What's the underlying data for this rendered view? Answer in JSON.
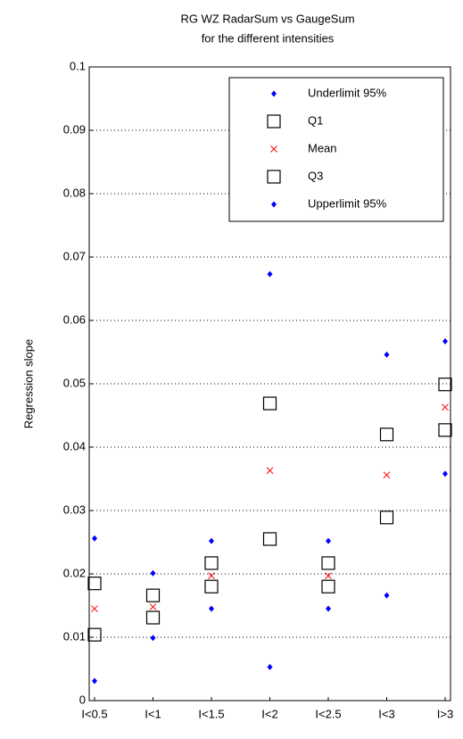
{
  "chart_data": {
    "type": "scatter",
    "title": [
      "RG WZ RadarSum vs GaugeSum",
      "for the different intensities"
    ],
    "y_label": "Regression slope",
    "categories": [
      "I<0.5",
      "I<1",
      "I<1.5",
      "I<2",
      "I<2.5",
      "I<3",
      "I>3"
    ],
    "series": [
      {
        "name": "Underlimit 95%",
        "color": "#0000ff",
        "marker": "diamond",
        "values": [
          0.0031,
          0.0099,
          0.0145,
          0.0053,
          0.0145,
          0.0166,
          0.0358
        ]
      },
      {
        "name": "Q1",
        "color": "#000000",
        "marker": "square",
        "values": [
          0.0104,
          0.0131,
          0.018,
          0.0255,
          0.018,
          0.0289,
          0.0427
        ]
      },
      {
        "name": "Mean",
        "color": "#ff0000",
        "marker": "x",
        "values": [
          0.0145,
          0.0148,
          0.0197,
          0.0363,
          0.0197,
          0.0356,
          0.0463
        ]
      },
      {
        "name": "Q3",
        "color": "#000000",
        "marker": "square",
        "values": [
          0.0185,
          0.0166,
          0.0217,
          0.0469,
          0.0217,
          0.042,
          0.0499
        ]
      },
      {
        "name": "Upperlimit 95%",
        "color": "#0000ff",
        "marker": "diamond",
        "values": [
          0.0256,
          0.0201,
          0.0252,
          0.0673,
          0.0252,
          0.0546,
          0.0567
        ]
      }
    ],
    "ylim": [
      0,
      0.1
    ],
    "yticks": [
      0,
      0.01,
      0.02,
      0.03,
      0.04,
      0.05,
      0.06,
      0.07,
      0.08,
      0.09,
      0.1
    ],
    "grid": true,
    "legend": "northeast"
  }
}
